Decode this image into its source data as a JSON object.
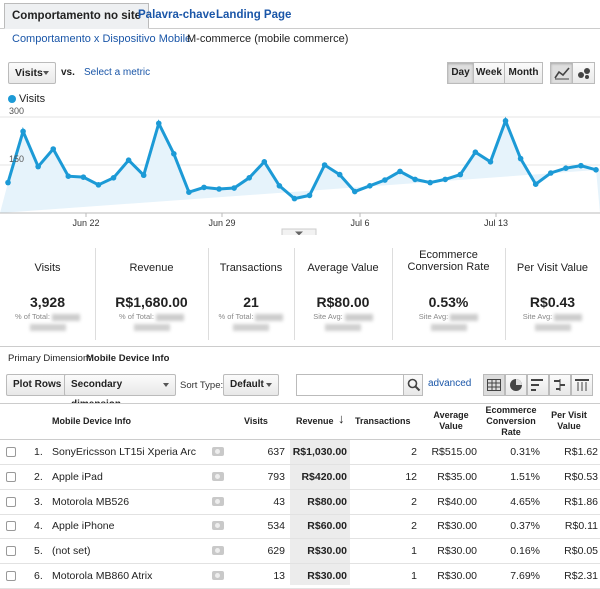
{
  "tabs": [
    {
      "label": "Comportamento no site"
    },
    {
      "label": "Palavra-chave"
    },
    {
      "label": "Landing Page"
    }
  ],
  "subtabs": [
    {
      "label": "Comportamento x Dispositivo Mobile"
    },
    {
      "label": "M-commerce (mobile commerce)"
    }
  ],
  "controls": {
    "metric_select": "Visits",
    "vs": "vs.",
    "select_metric": "Select a metric",
    "day": "Day",
    "week": "Week",
    "month": "Month"
  },
  "chart_data": {
    "type": "line",
    "series": [
      {
        "name": "Visits",
        "values": [
          95,
          255,
          145,
          200,
          115,
          112,
          88,
          110,
          165,
          118,
          280,
          185,
          65,
          80,
          75,
          78,
          110,
          160,
          85,
          45,
          55,
          150,
          120,
          67,
          85,
          103,
          130,
          105,
          95,
          105,
          120,
          190,
          160,
          288,
          170,
          90,
          125,
          140,
          148,
          135
        ]
      }
    ],
    "y_ticks": [
      "300",
      "150"
    ],
    "x_ticks": [
      "Jun 22",
      "Jun 29",
      "Jul 6",
      "Jul 13"
    ],
    "ylim": [
      0,
      300
    ],
    "color": "#1c9ad6"
  },
  "metrics": [
    {
      "label": "Visits",
      "value": "3,928",
      "sub": "% of Total:"
    },
    {
      "label": "Revenue",
      "value": "R$1,680.00",
      "sub": "% of Total:"
    },
    {
      "label": "Transactions",
      "value": "21",
      "sub": "% of Total:"
    },
    {
      "label": "Average Value",
      "value": "R$80.00",
      "sub": "Site Avg:"
    },
    {
      "label": "Ecommerce Conversion Rate",
      "value": "0.53%",
      "sub": "Site Avg:"
    },
    {
      "label": "Per Visit Value",
      "value": "R$0.43",
      "sub": "Site Avg:"
    }
  ],
  "primary_dimension": {
    "label": "Primary Dimension:",
    "value": "Mobile Device Info"
  },
  "table_controls": {
    "plot_rows": "Plot Rows",
    "secondary_dimension": "Secondary dimension",
    "sort_type": "Sort Type:",
    "default": "Default",
    "advanced": "advanced"
  },
  "table": {
    "headers": {
      "device": "Mobile Device Info",
      "visits": "Visits",
      "revenue": "Revenue",
      "transactions": "Transactions",
      "avg_value": "Average Value",
      "conv_rate": "Ecommerce Conversion Rate",
      "per_visit": "Per Visit Value"
    },
    "rows": [
      {
        "idx": "1.",
        "device": "SonyEricsson LT15i Xperia Arc",
        "visits": "637",
        "revenue": "R$1,030.00",
        "transactions": "2",
        "avg": "R$515.00",
        "conv": "0.31%",
        "pvv": "R$1.62"
      },
      {
        "idx": "2.",
        "device": "Apple iPad",
        "visits": "793",
        "revenue": "R$420.00",
        "transactions": "12",
        "avg": "R$35.00",
        "conv": "1.51%",
        "pvv": "R$0.53"
      },
      {
        "idx": "3.",
        "device": "Motorola MB526",
        "visits": "43",
        "revenue": "R$80.00",
        "transactions": "2",
        "avg": "R$40.00",
        "conv": "4.65%",
        "pvv": "R$1.86"
      },
      {
        "idx": "4.",
        "device": "Apple iPhone",
        "visits": "534",
        "revenue": "R$60.00",
        "transactions": "2",
        "avg": "R$30.00",
        "conv": "0.37%",
        "pvv": "R$0.11"
      },
      {
        "idx": "5.",
        "device": "(not set)",
        "visits": "629",
        "revenue": "R$30.00",
        "transactions": "1",
        "avg": "R$30.00",
        "conv": "0.16%",
        "pvv": "R$0.05"
      },
      {
        "idx": "6.",
        "device": "Motorola MB860 Atrix",
        "visits": "13",
        "revenue": "R$30.00",
        "transactions": "1",
        "avg": "R$30.00",
        "conv": "7.69%",
        "pvv": "R$2.31"
      }
    ]
  }
}
